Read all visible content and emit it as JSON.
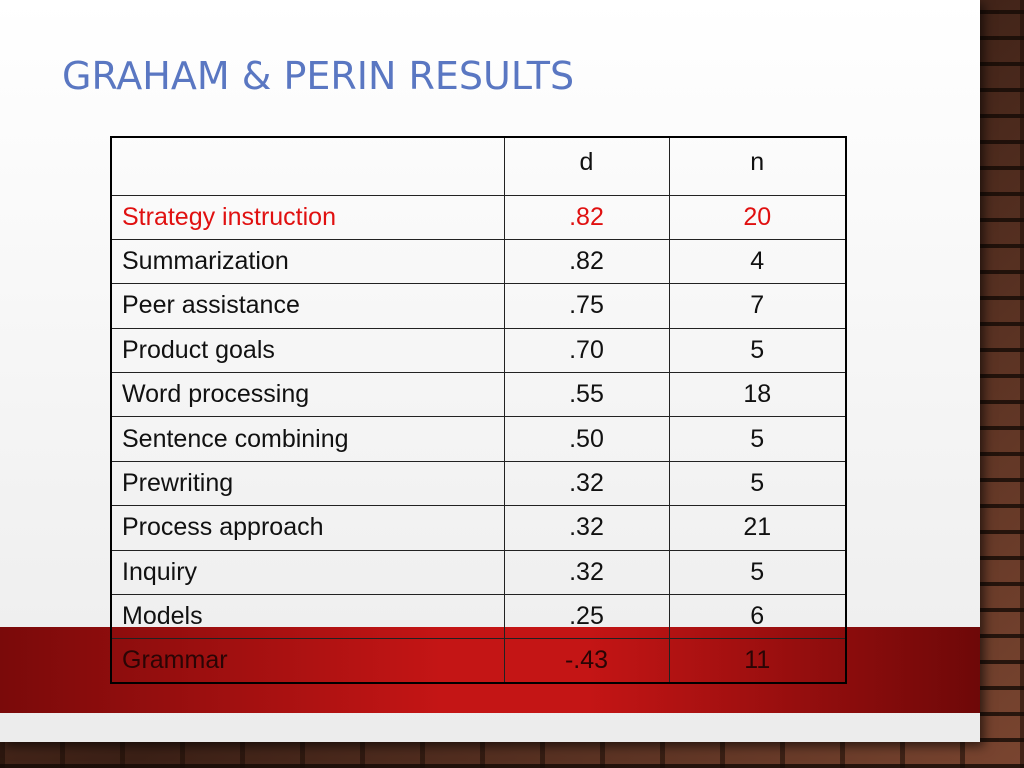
{
  "title": "GRAHAM & PERIN RESULTS",
  "table": {
    "header": [
      "d",
      "n"
    ],
    "rows": [
      [
        "Strategy instruction",
        ".82",
        "20"
      ],
      [
        "Summarization",
        ".82",
        "4"
      ],
      [
        "Peer assistance",
        ".75",
        "7"
      ],
      [
        "Product goals",
        ".70",
        "5"
      ],
      [
        "Word processing",
        ".55",
        "18"
      ],
      [
        "Sentence combining",
        ".50",
        "5"
      ],
      [
        "Prewriting",
        ".32",
        "5"
      ],
      [
        "Process approach",
        ".32",
        "21"
      ],
      [
        "Inquiry",
        ".32",
        "5"
      ],
      [
        "Models",
        ".25",
        "6"
      ],
      [
        "Grammar",
        "-.43",
        "11"
      ]
    ]
  }
}
